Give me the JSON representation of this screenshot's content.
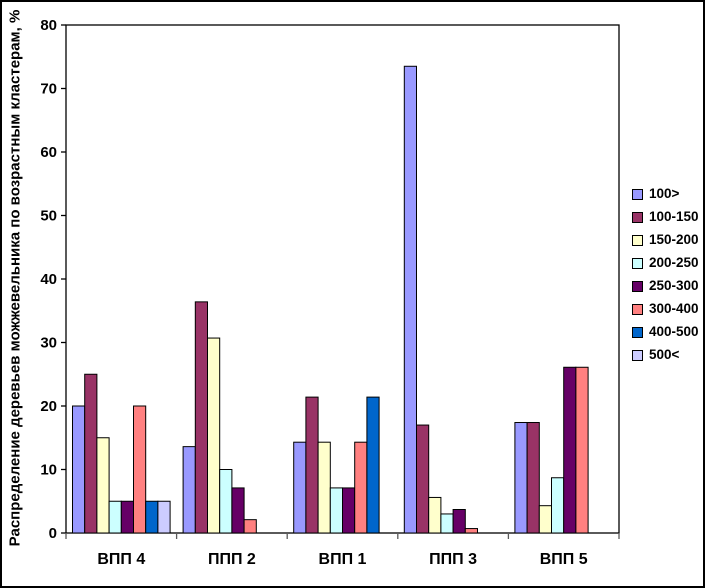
{
  "figure": {
    "background": "#FFFFFF",
    "border_color": "#000000",
    "axis_color": "#5a5a5a",
    "bar_border_color": "#000000",
    "text_color": "#000000"
  },
  "chart_data": {
    "type": "bar",
    "title": "",
    "xlabel": "",
    "ylabel": "Распределение деревьев можжевельника по возрастным кластерам, %",
    "ylim": [
      0,
      80
    ],
    "ytick_step": 10,
    "ytick_labels": [
      "0",
      "10",
      "20",
      "30",
      "40",
      "50",
      "60",
      "70",
      "80"
    ],
    "grid": false,
    "legend_position": "right",
    "categories": [
      "ВПП 4",
      "ППП 2",
      "ВПП 1",
      "ППП 3",
      "ВПП 5"
    ],
    "series": [
      {
        "name": "100>",
        "color": "#9999FF",
        "values": [
          20,
          13.6,
          14.3,
          73.5,
          17.4
        ]
      },
      {
        "name": "100-150",
        "color": "#993366",
        "values": [
          25,
          36.4,
          21.4,
          17,
          17.4
        ]
      },
      {
        "name": "150-200",
        "color": "#FFFFCC",
        "values": [
          15,
          30.7,
          14.3,
          5.6,
          4.3
        ]
      },
      {
        "name": "200-250",
        "color": "#CCFFFF",
        "values": [
          5,
          10,
          7.1,
          3,
          8.7
        ]
      },
      {
        "name": "250-300",
        "color": "#660066",
        "values": [
          5,
          7.1,
          7.1,
          3.7,
          26.1
        ]
      },
      {
        "name": "300-400",
        "color": "#FF8080",
        "values": [
          20,
          2.1,
          14.3,
          0.7,
          26.1
        ]
      },
      {
        "name": "400-500",
        "color": "#0066CC",
        "values": [
          5,
          0,
          21.4,
          0,
          0
        ]
      },
      {
        "name": "500<",
        "color": "#CCCCFF",
        "values": [
          5,
          0,
          0,
          0,
          0
        ]
      }
    ]
  }
}
